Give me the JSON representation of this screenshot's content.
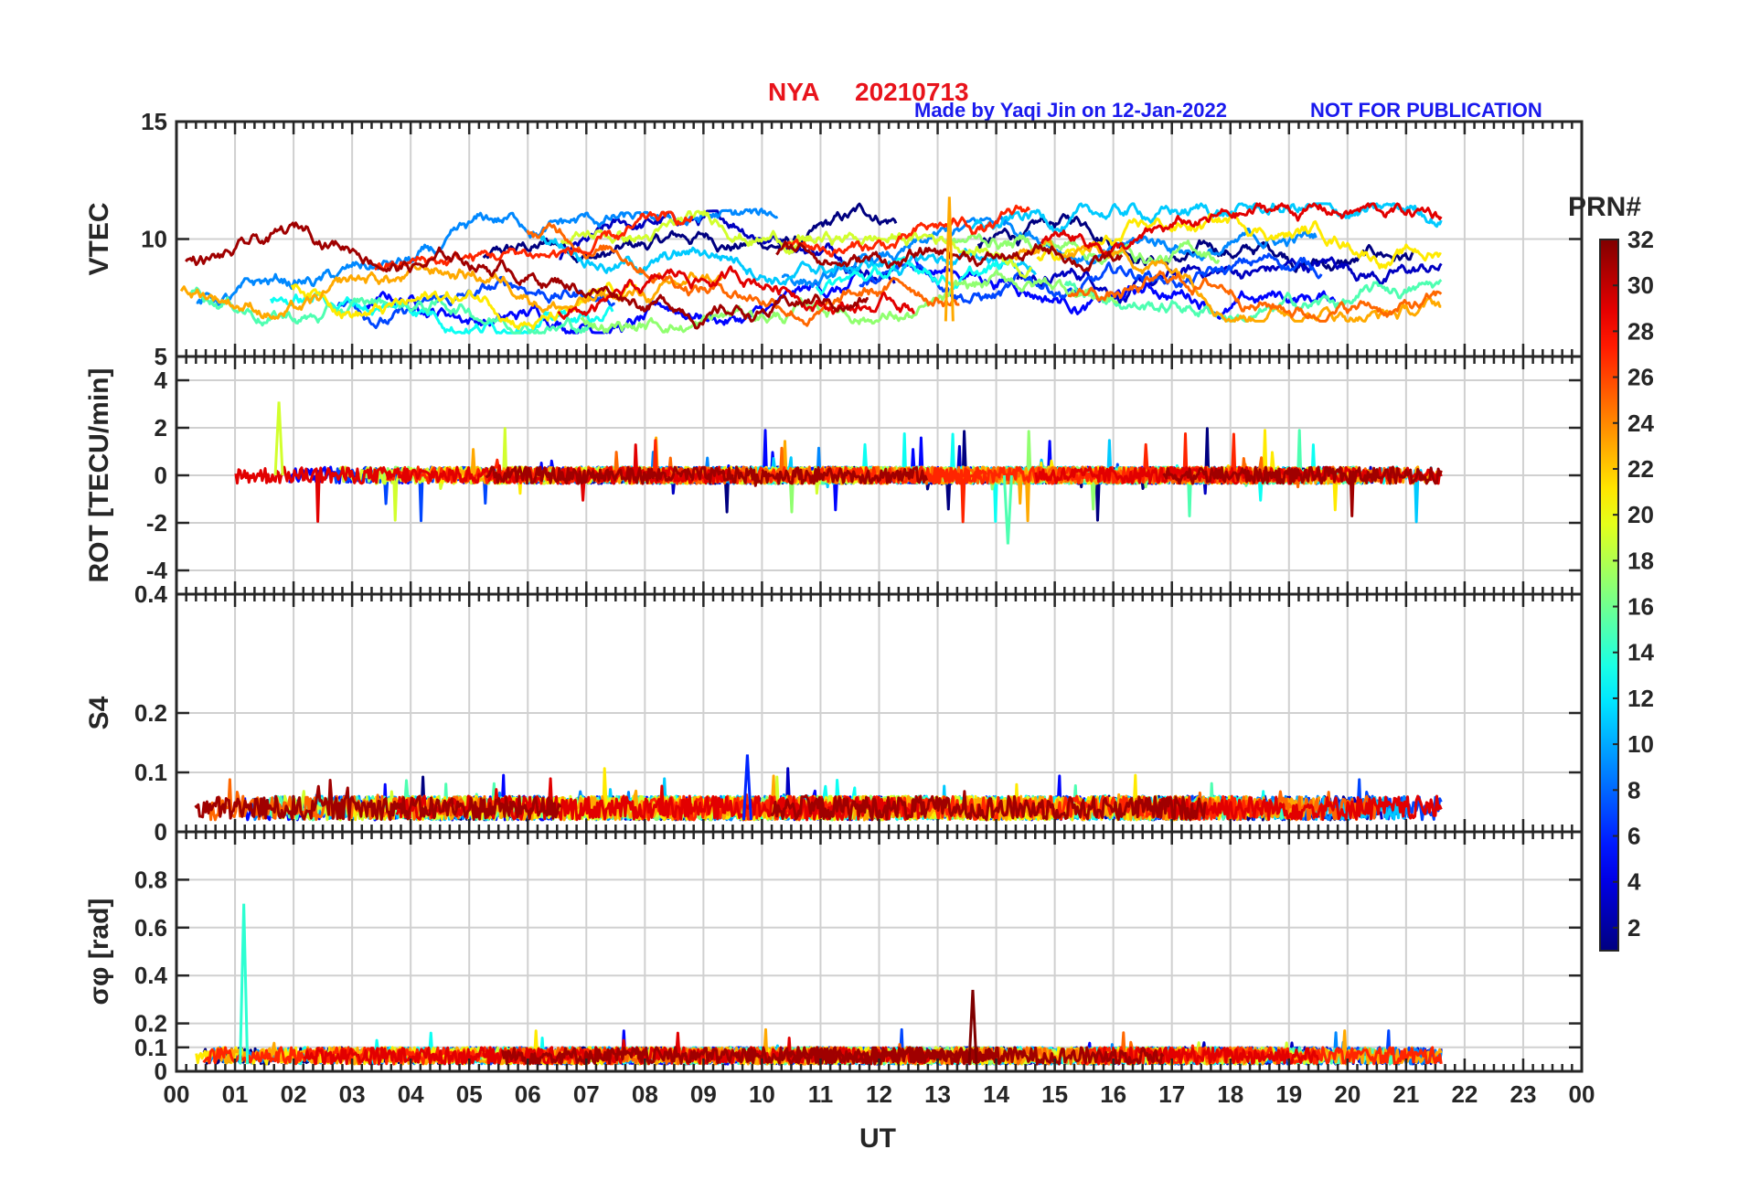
{
  "header": {
    "station": "NYA",
    "date": "20210713",
    "credit": "Made by Yaqi Jin on 12-Jan-2022",
    "notice": "NOT FOR PUBLICATION"
  },
  "colors": {
    "title": "#e8141c",
    "credit": "#1a1aee",
    "axis": "#262626",
    "grid": "#d0d0d0"
  },
  "colorbar": {
    "title": "PRN#",
    "range": [
      1,
      32
    ],
    "ticks": [
      2,
      4,
      6,
      8,
      10,
      12,
      14,
      16,
      18,
      20,
      22,
      24,
      26,
      28,
      30,
      32
    ],
    "colormap": "jet"
  },
  "chart_data": {
    "type": "line",
    "x_axis": {
      "label": "UT",
      "unit": "hour",
      "range": [
        0,
        24
      ],
      "ticks": [
        "00",
        "01",
        "02",
        "03",
        "04",
        "05",
        "06",
        "07",
        "08",
        "09",
        "10",
        "11",
        "12",
        "13",
        "14",
        "15",
        "16",
        "17",
        "18",
        "19",
        "20",
        "21",
        "22",
        "23",
        "00"
      ],
      "data_coverage": [
        0,
        21.6
      ]
    },
    "panels": [
      {
        "id": "vtec",
        "ylabel": "VTEC",
        "ylim": [
          5,
          15
        ],
        "yticks": [
          "5",
          "10",
          "15"
        ],
        "grid": true,
        "series_summary": {
          "baseline_range": [
            6.5,
            10.5
          ],
          "max_value": 11.8,
          "max_at_hour": 13.2,
          "min_value": 5.8,
          "min_at_hour": 3.3
        }
      },
      {
        "id": "rot",
        "ylabel": "ROT [TECU/min]",
        "ylim": [
          -5,
          5
        ],
        "yticks": [
          "-4",
          "-2",
          "0",
          "2",
          "4"
        ],
        "grid": true,
        "series_summary": {
          "baseline": 0,
          "typical_amplitude": 0.5,
          "max_spike": 3.1,
          "max_spike_at_hour": 1.75,
          "min_spike": -2.9,
          "min_spike_at_hour": 14.2
        }
      },
      {
        "id": "s4",
        "ylabel": "S4",
        "ylim": [
          0,
          0.4
        ],
        "yticks": [
          "0",
          "0.1",
          "0.2",
          "0.4"
        ],
        "grid": true,
        "series_summary": {
          "baseline_range": [
            0.02,
            0.06
          ],
          "max_value": 0.13,
          "max_at_hour": 9.75
        }
      },
      {
        "id": "sigma_phi",
        "ylabel": "σφ [rad]",
        "ylim": [
          0,
          1
        ],
        "yticks": [
          "0",
          "0.1",
          "0.2",
          "0.4",
          "0.6",
          "0.8"
        ],
        "grid": true,
        "series_summary": {
          "baseline_range": [
            0.03,
            0.1
          ],
          "max_value": 0.7,
          "max_at_hour": 1.15,
          "secondary_peak": 0.34,
          "secondary_peak_at_hour": 13.6
        }
      }
    ],
    "series": [
      {
        "name": "",
        "prn": 1
      },
      {
        "name": "",
        "prn": 3
      },
      {
        "name": "",
        "prn": 5
      },
      {
        "name": "",
        "prn": 7
      },
      {
        "name": "",
        "prn": 9
      },
      {
        "name": "",
        "prn": 11
      },
      {
        "name": "",
        "prn": 13
      },
      {
        "name": "",
        "prn": 15
      },
      {
        "name": "",
        "prn": 17
      },
      {
        "name": "",
        "prn": 19
      },
      {
        "name": "",
        "prn": 21
      },
      {
        "name": "",
        "prn": 23
      },
      {
        "name": "",
        "prn": 25
      },
      {
        "name": "",
        "prn": 27
      },
      {
        "name": "",
        "prn": 29
      },
      {
        "name": "",
        "prn": 31
      }
    ]
  }
}
